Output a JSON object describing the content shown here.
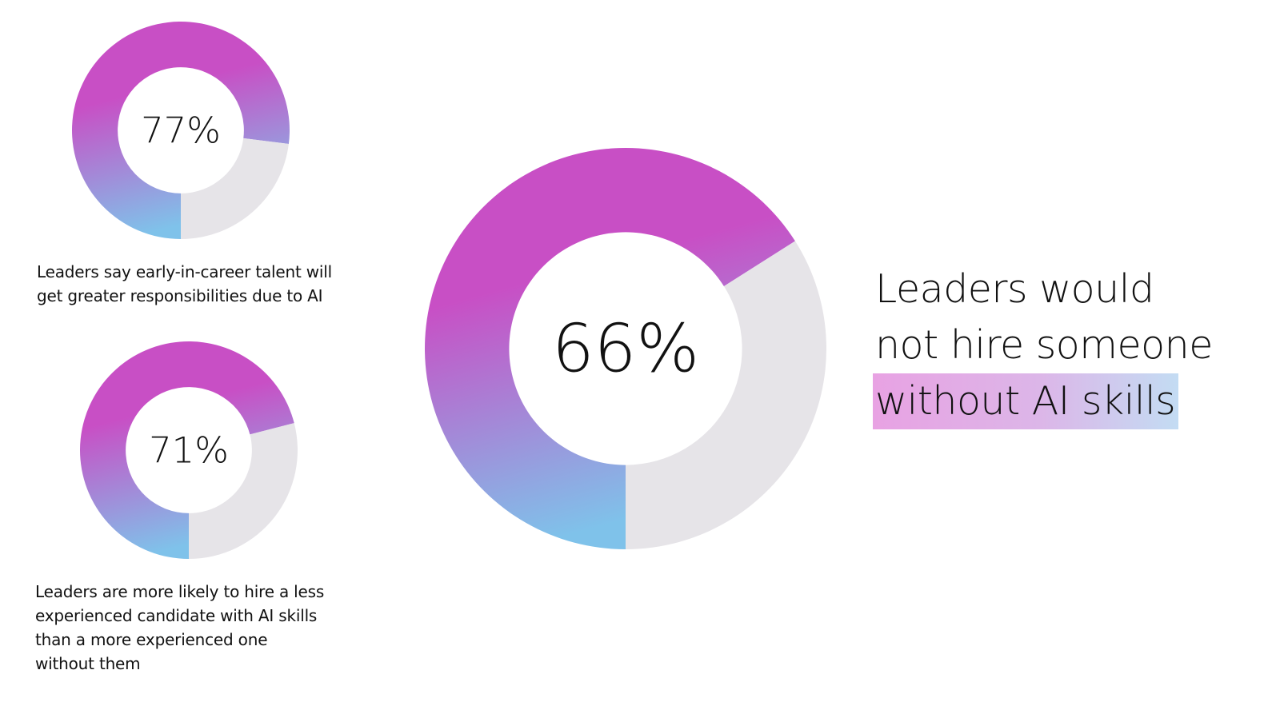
{
  "chart_data": [
    {
      "type": "pie",
      "variant": "donut",
      "label": "77%",
      "values": [
        77,
        23
      ],
      "caption": "Leaders say early-in-career talent will\nget greater responsibilities due to AI"
    },
    {
      "type": "pie",
      "variant": "donut",
      "label": "71%",
      "values": [
        71,
        29
      ],
      "caption": "Leaders are more likely to hire a less\nexperienced candidate with AI skills\nthan a more experienced one\nwithout them"
    },
    {
      "type": "pie",
      "variant": "donut",
      "label": "66%",
      "values": [
        66,
        34
      ]
    }
  ],
  "headline": {
    "line1": "Leaders would",
    "line2": "not hire someone",
    "highlight": "without AI skills"
  },
  "colors": {
    "gradient_top": "#c84fc5",
    "gradient_bottom": "#7fc2ea",
    "remainder": "#e6e4e8",
    "text": "#111111",
    "highlight_start": "#e8a2e3",
    "highlight_end": "#c3dcf3"
  }
}
